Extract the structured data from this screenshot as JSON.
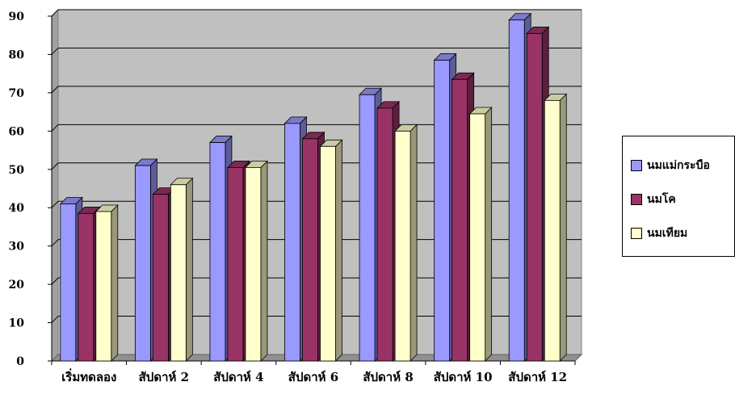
{
  "chart_data": {
    "type": "bar",
    "categories": [
      "เริ่มทดลอง",
      "สัปดาห์ 2",
      "สัปดาห์ 4",
      "สัปดาห์ 6",
      "สัปดาห์ 8",
      "สัปดาห์ 10",
      "สัปดาห์ 12"
    ],
    "series": [
      {
        "name": "นมแม่กระบือ",
        "values": [
          41,
          51,
          57,
          62,
          69.5,
          78.5,
          89
        ],
        "color": "#9999ff"
      },
      {
        "name": "นมโค",
        "values": [
          38.5,
          43.5,
          50.5,
          58,
          66,
          73.5,
          85.5
        ],
        "color": "#993366"
      },
      {
        "name": "นมเทียม",
        "values": [
          39,
          46,
          50.5,
          56,
          60,
          64.5,
          68
        ],
        "color": "#ffffcc"
      }
    ],
    "ylim": [
      0,
      90
    ],
    "yticks": [
      0,
      10,
      20,
      30,
      40,
      50,
      60,
      70,
      80,
      90
    ],
    "title": "",
    "xlabel": "",
    "ylabel": "",
    "grid": true,
    "legend": "right",
    "plot_background": "#c0c0c0"
  }
}
